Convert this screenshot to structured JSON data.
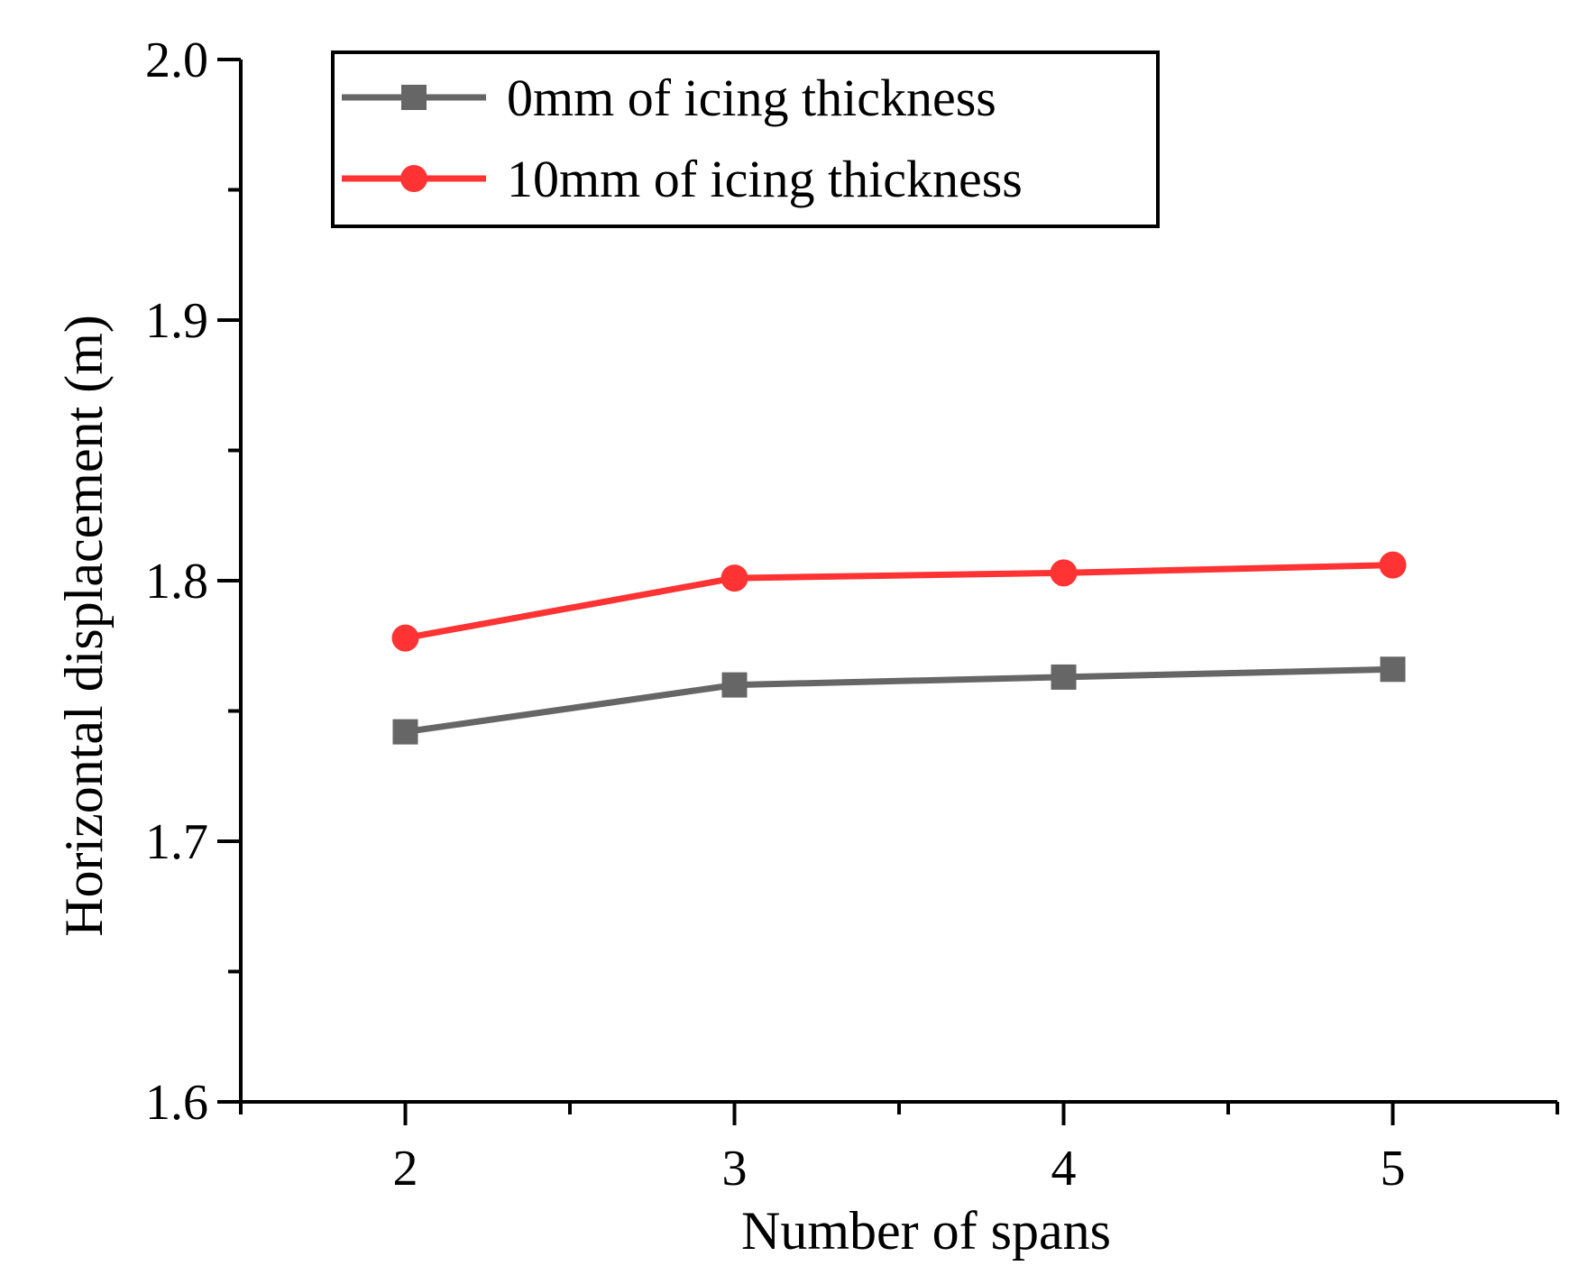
{
  "chart_data": {
    "type": "line",
    "title": "",
    "xlabel": "Number of spans",
    "ylabel": "Horizontal displacement (m)",
    "xlim": [
      1.5,
      5.5
    ],
    "ylim": [
      1.6,
      2.0
    ],
    "x": [
      2,
      3,
      4,
      5
    ],
    "x_tick_labels": [
      "2",
      "3",
      "4",
      "5"
    ],
    "y_ticks": [
      1.6,
      1.7,
      1.8,
      1.9,
      2.0
    ],
    "y_tick_labels": [
      "1.6",
      "1.7",
      "1.8",
      "1.9",
      "2.0"
    ],
    "legend_position": "top-left",
    "series": [
      {
        "name": "0mm of icing thickness",
        "values": [
          1.742,
          1.76,
          1.763,
          1.766
        ],
        "color": "#666666",
        "marker": "square"
      },
      {
        "name": "10mm of icing thickness",
        "values": [
          1.778,
          1.801,
          1.803,
          1.806
        ],
        "color": "#ff3333",
        "marker": "circle"
      }
    ]
  }
}
